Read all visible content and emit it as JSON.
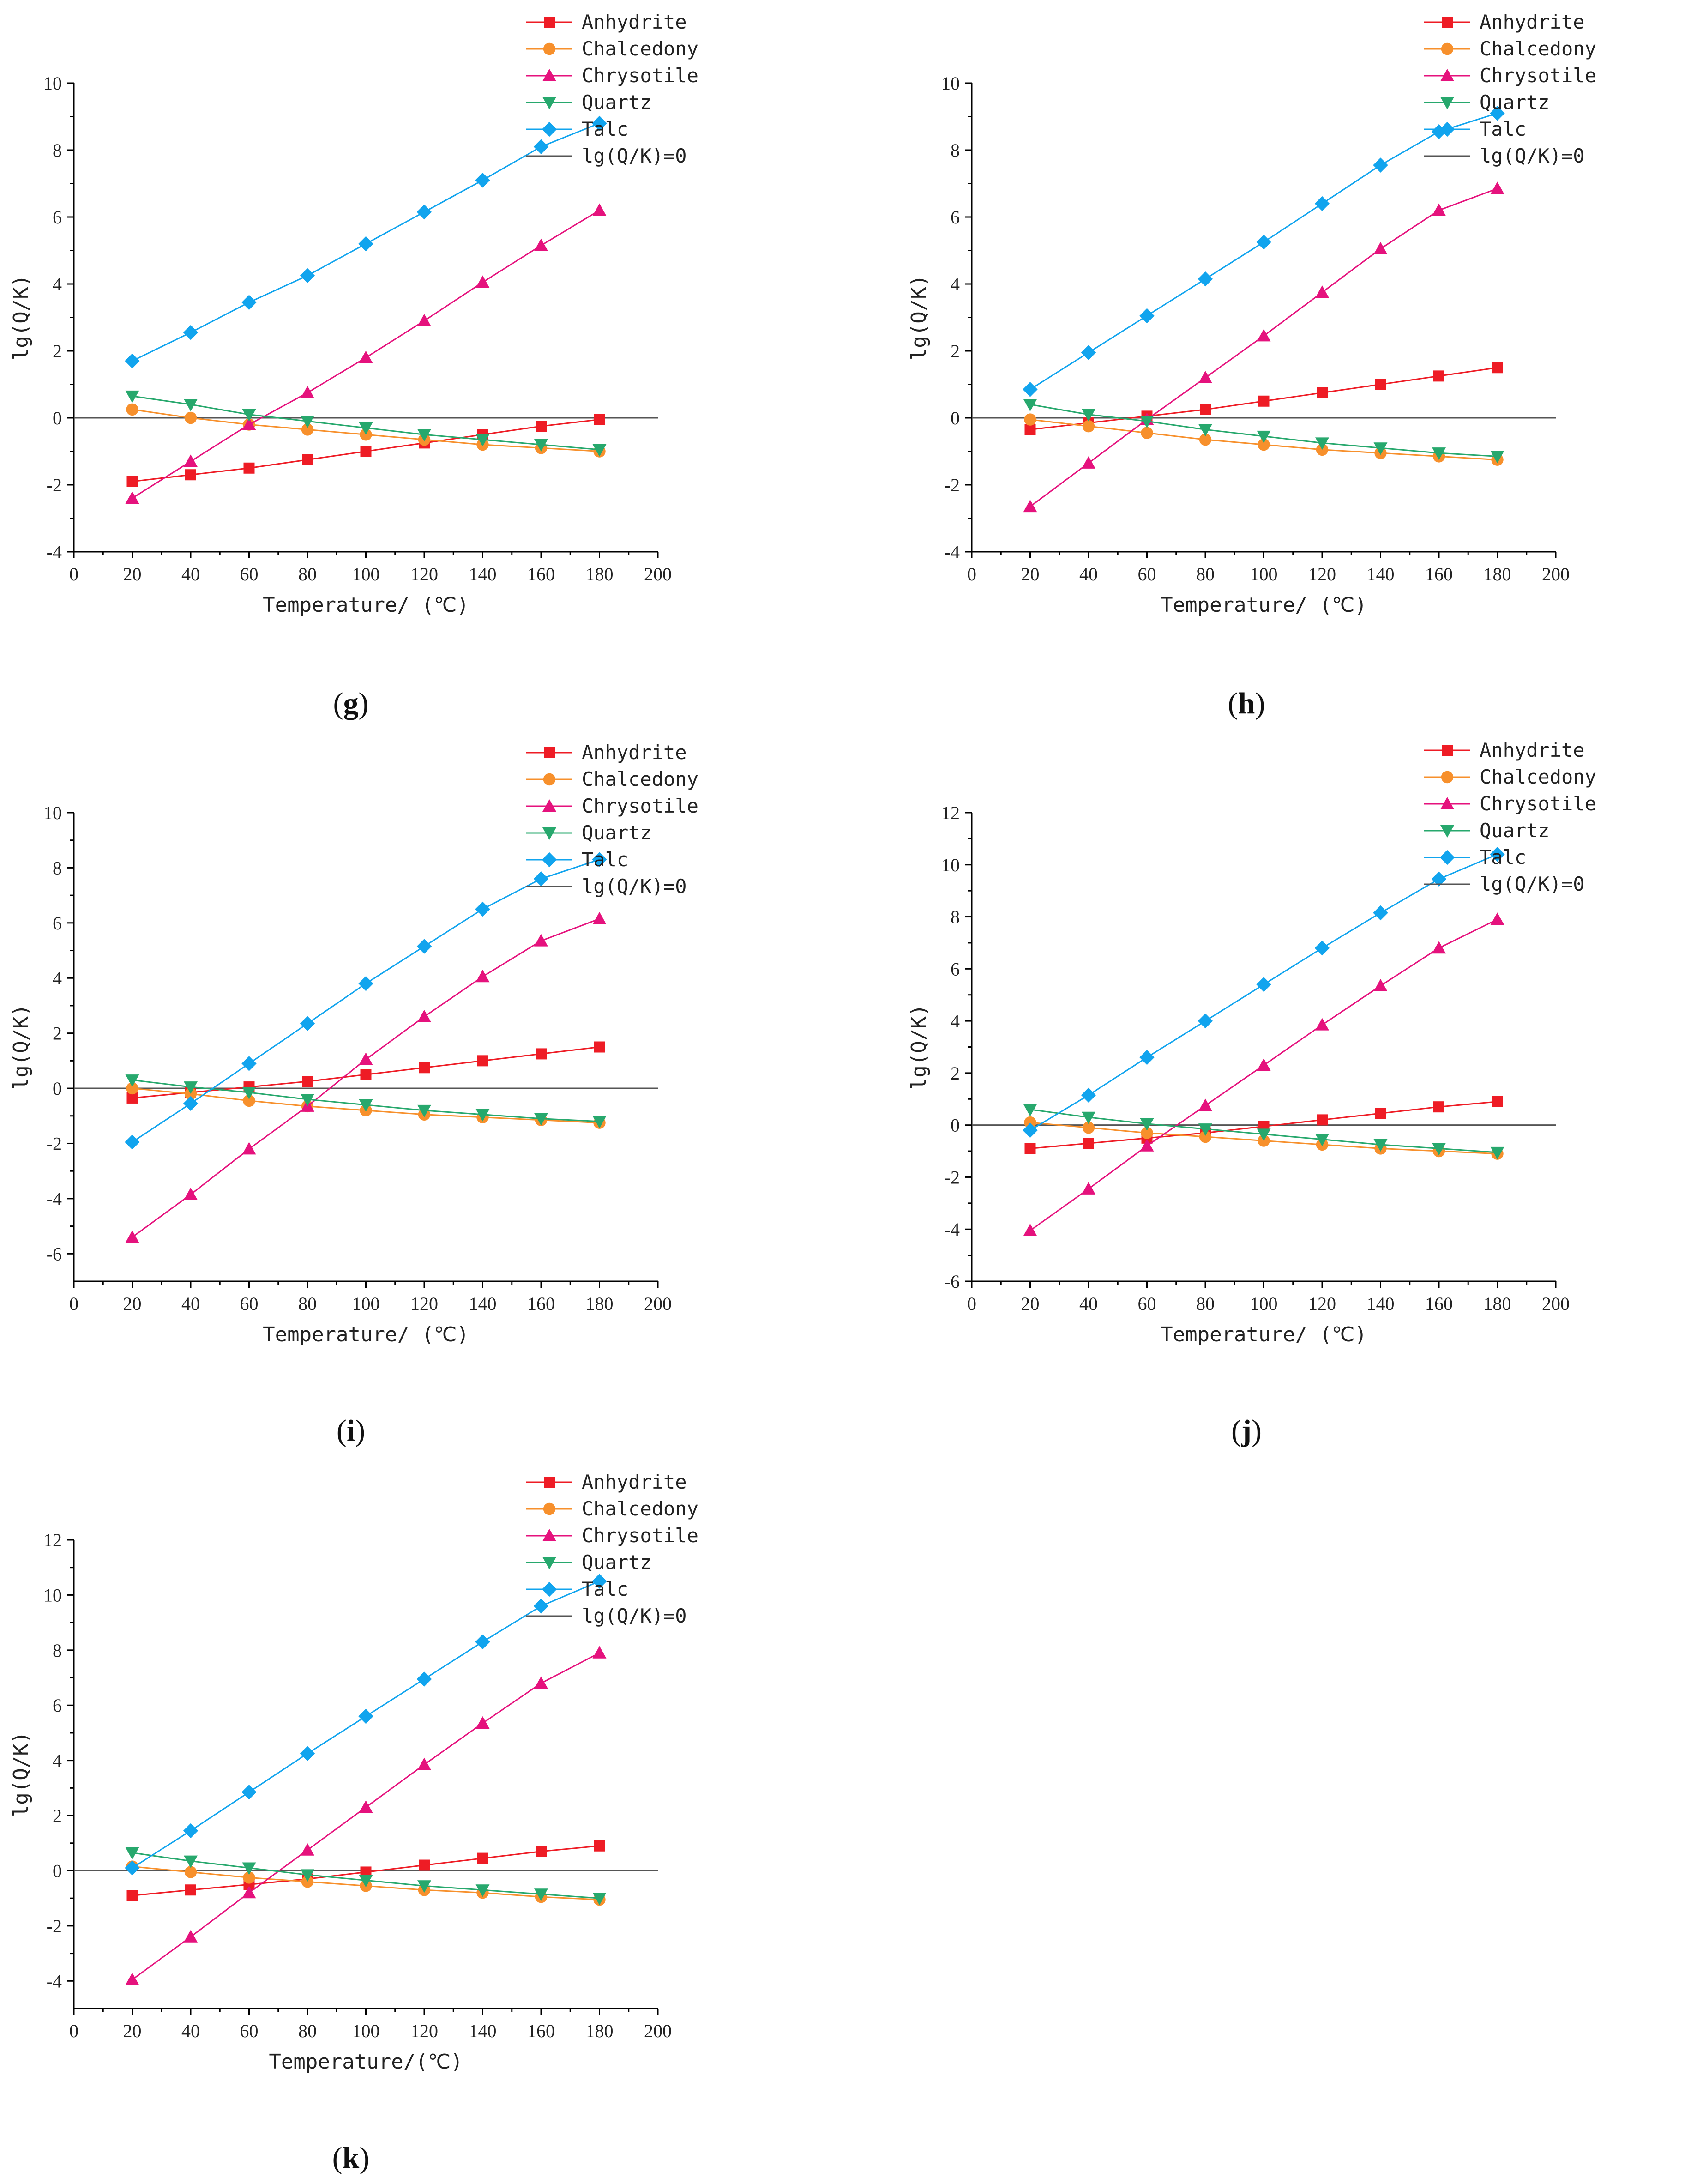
{
  "colors": {
    "Anhydrite": "#ee1c25",
    "Chalcedony": "#f7902c",
    "Chrysotile": "#e5127d",
    "Quartz": "#27a86d",
    "Talc": "#11a4ee",
    "zero": "#555555"
  },
  "markers": {
    "Anhydrite": "square",
    "Chalcedony": "circle",
    "Chrysotile": "triangle-up",
    "Quartz": "triangle-down",
    "Talc": "diamond"
  },
  "chart_data": [
    {
      "type": "line",
      "panel_label": "g",
      "xlabel": "Temperature/ (℃)",
      "ylabel": "lg(Q/K)",
      "xlim": [
        0,
        200
      ],
      "ylim": [
        -4,
        10
      ],
      "xticks": [
        "0",
        "20",
        "40",
        "60",
        "80",
        "100",
        "120",
        "140",
        "160",
        "180",
        "200"
      ],
      "yticks": [
        "-4",
        "-2",
        "0",
        "2",
        "4",
        "6",
        "8",
        "10"
      ],
      "legend": [
        "Anhydrite",
        "Chalcedony",
        "Chrysotile",
        "Quartz",
        "Talc",
        "lg(Q/K)=0"
      ],
      "legend_position": "top-right",
      "x": [
        20,
        40,
        60,
        80,
        100,
        120,
        140,
        160,
        180
      ],
      "series": [
        {
          "name": "Anhydrite",
          "values": [
            -1.9,
            -1.7,
            -1.5,
            -1.25,
            -1.0,
            -0.75,
            -0.5,
            -0.25,
            -0.05
          ]
        },
        {
          "name": "Chalcedony",
          "values": [
            0.25,
            0.0,
            -0.2,
            -0.35,
            -0.5,
            -0.65,
            -0.8,
            -0.9,
            -1.0
          ]
        },
        {
          "name": "Chrysotile",
          "values": [
            -2.4,
            -1.3,
            -0.2,
            0.75,
            1.8,
            2.9,
            4.05,
            5.15,
            6.2
          ]
        },
        {
          "name": "Quartz",
          "values": [
            0.65,
            0.4,
            0.1,
            -0.1,
            -0.3,
            -0.5,
            -0.65,
            -0.8,
            -0.95
          ]
        },
        {
          "name": "Talc",
          "values": [
            1.7,
            2.55,
            3.45,
            4.25,
            5.2,
            6.15,
            7.1,
            8.1,
            8.8
          ]
        }
      ]
    },
    {
      "type": "line",
      "panel_label": "h",
      "xlabel": "Temperature/ (℃)",
      "ylabel": "lg(Q/K)",
      "xlim": [
        0,
        200
      ],
      "ylim": [
        -4,
        10
      ],
      "xticks": [
        "0",
        "20",
        "40",
        "60",
        "80",
        "100",
        "120",
        "140",
        "160",
        "180",
        "200"
      ],
      "yticks": [
        "-4",
        "-2",
        "0",
        "2",
        "4",
        "6",
        "8",
        "10"
      ],
      "legend": [
        "Anhydrite",
        "Chalcedony",
        "Chrysotile",
        "Quartz",
        "Talc",
        "lg(Q/K)=0"
      ],
      "legend_position": "top-right",
      "x": [
        20,
        40,
        60,
        80,
        100,
        120,
        140,
        160,
        180
      ],
      "series": [
        {
          "name": "Anhydrite",
          "values": [
            -0.35,
            -0.15,
            0.05,
            0.25,
            0.5,
            0.75,
            1.0,
            1.25,
            1.5
          ]
        },
        {
          "name": "Chalcedony",
          "values": [
            -0.05,
            -0.25,
            -0.45,
            -0.65,
            -0.8,
            -0.95,
            -1.05,
            -1.15,
            -1.25
          ]
        },
        {
          "name": "Chrysotile",
          "values": [
            -2.65,
            -1.35,
            -0.05,
            1.2,
            2.45,
            3.75,
            5.05,
            6.2,
            6.85
          ]
        },
        {
          "name": "Quartz",
          "values": [
            0.4,
            0.1,
            -0.1,
            -0.35,
            -0.55,
            -0.75,
            -0.9,
            -1.05,
            -1.15
          ]
        },
        {
          "name": "Talc",
          "values": [
            0.85,
            1.95,
            3.05,
            4.15,
            5.25,
            6.4,
            7.55,
            8.55,
            9.1
          ]
        }
      ]
    },
    {
      "type": "line",
      "panel_label": "i",
      "xlabel": "Temperature/ (℃)",
      "ylabel": "lg(Q/K)",
      "xlim": [
        0,
        200
      ],
      "ylim": [
        -7,
        10
      ],
      "xticks": [
        "0",
        "20",
        "40",
        "60",
        "80",
        "100",
        "120",
        "140",
        "160",
        "180",
        "200"
      ],
      "yticks": [
        "-6",
        "-4",
        "-2",
        "0",
        "2",
        "4",
        "6",
        "8",
        "10"
      ],
      "legend": [
        "Anhydrite",
        "Chalcedony",
        "Chrysotile",
        "Quartz",
        "Talc",
        "lg(Q/K)=0"
      ],
      "legend_position": "top-right",
      "x": [
        20,
        40,
        60,
        80,
        100,
        120,
        140,
        160,
        180
      ],
      "series": [
        {
          "name": "Anhydrite",
          "values": [
            -0.35,
            -0.15,
            0.05,
            0.25,
            0.5,
            0.75,
            1.0,
            1.25,
            1.5
          ]
        },
        {
          "name": "Chalcedony",
          "values": [
            0.0,
            -0.2,
            -0.45,
            -0.65,
            -0.8,
            -0.95,
            -1.05,
            -1.15,
            -1.25
          ]
        },
        {
          "name": "Chrysotile",
          "values": [
            -5.4,
            -3.85,
            -2.2,
            -0.65,
            1.05,
            2.6,
            4.05,
            5.35,
            6.15
          ]
        },
        {
          "name": "Quartz",
          "values": [
            0.3,
            0.05,
            -0.15,
            -0.4,
            -0.6,
            -0.8,
            -0.95,
            -1.1,
            -1.2
          ]
        },
        {
          "name": "Talc",
          "values": [
            -1.95,
            -0.55,
            0.9,
            2.35,
            3.8,
            5.15,
            6.5,
            7.6,
            8.3
          ]
        }
      ]
    },
    {
      "type": "line",
      "panel_label": "j",
      "xlabel": "Temperature/ (℃)",
      "ylabel": "lg(Q/K)",
      "xlim": [
        0,
        200
      ],
      "ylim": [
        -6,
        12
      ],
      "xticks": [
        "0",
        "20",
        "40",
        "60",
        "80",
        "100",
        "120",
        "140",
        "160",
        "180",
        "200"
      ],
      "yticks": [
        "-6",
        "-4",
        "-2",
        "0",
        "2",
        "4",
        "6",
        "8",
        "10",
        "12"
      ],
      "legend": [
        "Anhydrite",
        "Chalcedony",
        "Chrysotile",
        "Quartz",
        "Talc",
        "lg(Q/K)=0"
      ],
      "legend_position": "top-right",
      "x": [
        20,
        40,
        60,
        80,
        100,
        120,
        140,
        160,
        180
      ],
      "series": [
        {
          "name": "Anhydrite",
          "values": [
            -0.9,
            -0.7,
            -0.5,
            -0.3,
            -0.05,
            0.2,
            0.45,
            0.7,
            0.9
          ]
        },
        {
          "name": "Chalcedony",
          "values": [
            0.1,
            -0.1,
            -0.3,
            -0.45,
            -0.6,
            -0.75,
            -0.9,
            -1.0,
            -1.1
          ]
        },
        {
          "name": "Chrysotile",
          "values": [
            -4.05,
            -2.45,
            -0.8,
            0.75,
            2.3,
            3.85,
            5.35,
            6.8,
            7.9
          ]
        },
        {
          "name": "Quartz",
          "values": [
            0.6,
            0.3,
            0.05,
            -0.15,
            -0.35,
            -0.55,
            -0.75,
            -0.9,
            -1.05
          ]
        },
        {
          "name": "Talc",
          "values": [
            -0.2,
            1.15,
            2.6,
            4.0,
            5.4,
            6.8,
            8.15,
            9.45,
            10.4
          ]
        }
      ]
    },
    {
      "type": "line",
      "panel_label": "k",
      "xlabel": "Temperature/(℃)",
      "ylabel": "lg(Q/K)",
      "xlim": [
        0,
        200
      ],
      "ylim": [
        -5,
        12
      ],
      "xticks": [
        "0",
        "20",
        "40",
        "60",
        "80",
        "100",
        "120",
        "140",
        "160",
        "180",
        "200"
      ],
      "yticks": [
        "-4",
        "-2",
        "0",
        "2",
        "4",
        "6",
        "8",
        "10",
        "12"
      ],
      "legend": [
        "Anhydrite",
        "Chalcedony",
        "Chrysotile",
        "Quartz",
        "Talc",
        "lg(Q/K)=0"
      ],
      "legend_position": "top-right",
      "x": [
        20,
        40,
        60,
        80,
        100,
        120,
        140,
        160,
        180
      ],
      "series": [
        {
          "name": "Anhydrite",
          "values": [
            -0.9,
            -0.7,
            -0.5,
            -0.3,
            -0.05,
            0.2,
            0.45,
            0.7,
            0.9
          ]
        },
        {
          "name": "Chalcedony",
          "values": [
            0.15,
            -0.05,
            -0.25,
            -0.4,
            -0.55,
            -0.7,
            -0.8,
            -0.95,
            -1.05
          ]
        },
        {
          "name": "Chrysotile",
          "values": [
            -3.95,
            -2.4,
            -0.8,
            0.75,
            2.3,
            3.85,
            5.35,
            6.8,
            7.9
          ]
        },
        {
          "name": "Quartz",
          "values": [
            0.65,
            0.35,
            0.1,
            -0.15,
            -0.35,
            -0.55,
            -0.7,
            -0.85,
            -1.0
          ]
        },
        {
          "name": "Talc",
          "values": [
            0.1,
            1.45,
            2.85,
            4.25,
            5.6,
            6.95,
            8.3,
            9.6,
            10.5
          ]
        }
      ]
    }
  ]
}
